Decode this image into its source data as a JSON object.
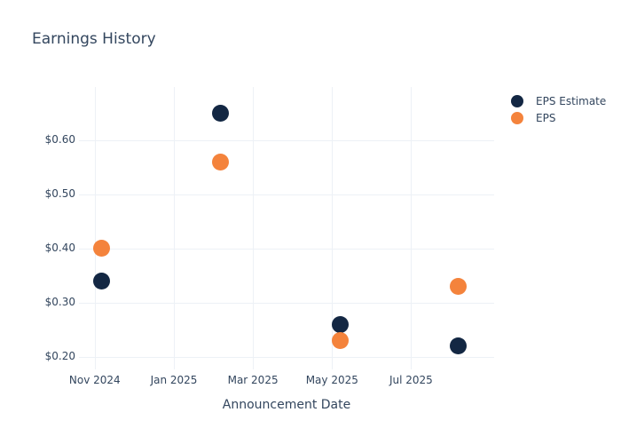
{
  "chart": {
    "title": "Earnings History",
    "xlabel": "Announcement Date"
  },
  "chart_data": {
    "type": "scatter",
    "title": "Earnings History",
    "xlabel": "Announcement Date",
    "ylabel": "",
    "x": [
      "2024-11-06",
      "2025-02-06",
      "2025-05-07",
      "2025-08-07"
    ],
    "series": [
      {
        "name": "EPS Estimate",
        "color": "#132743",
        "values": [
          0.34,
          0.65,
          0.26,
          0.22
        ]
      },
      {
        "name": "EPS",
        "color": "#f4833c",
        "values": [
          0.4,
          0.56,
          0.23,
          0.33
        ]
      }
    ],
    "x_tick_labels": [
      "Nov 2024",
      "Jan 2025",
      "Mar 2025",
      "May 2025",
      "Jul 2025"
    ],
    "x_tick_months_from_nov2024": [
      0,
      2,
      4,
      6,
      8
    ],
    "y_ticks": [
      0.2,
      0.3,
      0.4,
      0.5,
      0.6
    ],
    "y_tick_labels": [
      "$0.20",
      "$0.30",
      "$0.40",
      "$0.50",
      "$0.60"
    ],
    "ylim": [
      0.177,
      0.698
    ],
    "xlim_months_from_nov2024": [
      -0.4,
      10.1
    ],
    "grid": true,
    "legend_position": "right",
    "marker_size_px": 19,
    "background": "#ffffff",
    "text_color": "#33465e",
    "grid_color": "#edf1f6"
  }
}
